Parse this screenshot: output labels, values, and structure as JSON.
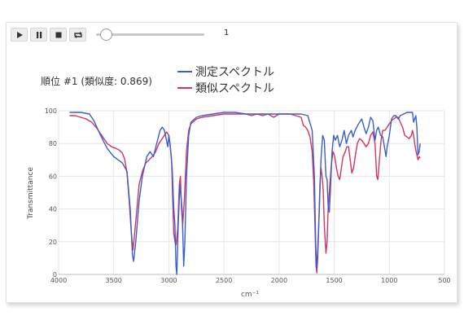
{
  "controls": {
    "play_label": "play",
    "pause_label": "pause",
    "stop_label": "stop",
    "loop_label": "loop",
    "frame_value": "1"
  },
  "rank_text": "順位 #1 (類似度: 0.869)",
  "colors": {
    "measured": "#3a5fcd",
    "similar": "#d6335f",
    "grid": "#e6e6e6",
    "axis_text": "#555555"
  },
  "chart_data": {
    "type": "line",
    "xlabel": "cm⁻¹",
    "ylabel": "Transmittance",
    "xlim": [
      4000,
      500
    ],
    "ylim": [
      0,
      100
    ],
    "x_ticks": [
      4000,
      3500,
      3000,
      2500,
      2000,
      1500,
      1000,
      500
    ],
    "y_ticks": [
      0,
      20,
      40,
      60,
      80,
      100
    ],
    "grid": true,
    "legend_position": "top-center",
    "series": [
      {
        "name": "測定スペクトル",
        "color": "#3a5fcd",
        "points": [
          [
            3900,
            99
          ],
          [
            3800,
            99
          ],
          [
            3720,
            98
          ],
          [
            3680,
            94
          ],
          [
            3620,
            85
          ],
          [
            3560,
            77
          ],
          [
            3500,
            72
          ],
          [
            3460,
            70
          ],
          [
            3420,
            68
          ],
          [
            3380,
            63
          ],
          [
            3350,
            40
          ],
          [
            3330,
            12
          ],
          [
            3320,
            8
          ],
          [
            3300,
            20
          ],
          [
            3270,
            45
          ],
          [
            3240,
            60
          ],
          [
            3200,
            72
          ],
          [
            3170,
            75
          ],
          [
            3140,
            72
          ],
          [
            3110,
            80
          ],
          [
            3080,
            88
          ],
          [
            3060,
            90
          ],
          [
            3040,
            88
          ],
          [
            3010,
            78
          ],
          [
            3000,
            85
          ],
          [
            2990,
            80
          ],
          [
            2970,
            65
          ],
          [
            2955,
            40
          ],
          [
            2945,
            30
          ],
          [
            2935,
            5
          ],
          [
            2928,
            0
          ],
          [
            2915,
            30
          ],
          [
            2900,
            55
          ],
          [
            2880,
            40
          ],
          [
            2865,
            5
          ],
          [
            2855,
            20
          ],
          [
            2840,
            60
          ],
          [
            2820,
            85
          ],
          [
            2800,
            93
          ],
          [
            2750,
            96
          ],
          [
            2700,
            97
          ],
          [
            2600,
            98
          ],
          [
            2500,
            99
          ],
          [
            2400,
            99
          ],
          [
            2300,
            98
          ],
          [
            2200,
            98
          ],
          [
            2100,
            98
          ],
          [
            2000,
            98
          ],
          [
            1900,
            98
          ],
          [
            1800,
            98
          ],
          [
            1740,
            97
          ],
          [
            1700,
            88
          ],
          [
            1680,
            60
          ],
          [
            1668,
            20
          ],
          [
            1660,
            3
          ],
          [
            1650,
            15
          ],
          [
            1635,
            40
          ],
          [
            1620,
            70
          ],
          [
            1605,
            85
          ],
          [
            1590,
            82
          ],
          [
            1575,
            60
          ],
          [
            1565,
            58
          ],
          [
            1555,
            42
          ],
          [
            1545,
            38
          ],
          [
            1535,
            50
          ],
          [
            1520,
            75
          ],
          [
            1505,
            85
          ],
          [
            1490,
            82
          ],
          [
            1470,
            85
          ],
          [
            1450,
            78
          ],
          [
            1430,
            82
          ],
          [
            1410,
            88
          ],
          [
            1390,
            80
          ],
          [
            1370,
            85
          ],
          [
            1345,
            88
          ],
          [
            1330,
            84
          ],
          [
            1310,
            88
          ],
          [
            1280,
            92
          ],
          [
            1250,
            95
          ],
          [
            1230,
            90
          ],
          [
            1210,
            86
          ],
          [
            1190,
            90
          ],
          [
            1170,
            96
          ],
          [
            1150,
            94
          ],
          [
            1130,
            82
          ],
          [
            1115,
            88
          ],
          [
            1100,
            90
          ],
          [
            1080,
            85
          ],
          [
            1060,
            84
          ],
          [
            1040,
            76
          ],
          [
            1030,
            72
          ],
          [
            1020,
            78
          ],
          [
            1000,
            85
          ],
          [
            980,
            95
          ],
          [
            960,
            97
          ],
          [
            940,
            97
          ],
          [
            920,
            95
          ],
          [
            900,
            97
          ],
          [
            870,
            98
          ],
          [
            840,
            99
          ],
          [
            810,
            99
          ],
          [
            790,
            99
          ],
          [
            780,
            93
          ],
          [
            770,
            95
          ],
          [
            760,
            97
          ],
          [
            750,
            90
          ],
          [
            740,
            73
          ],
          [
            730,
            75
          ],
          [
            720,
            80
          ]
        ]
      },
      {
        "name": "類似スペクトル",
        "color": "#d6335f",
        "points": [
          [
            3900,
            97
          ],
          [
            3850,
            97
          ],
          [
            3800,
            96
          ],
          [
            3750,
            95
          ],
          [
            3700,
            93
          ],
          [
            3650,
            89
          ],
          [
            3600,
            84
          ],
          [
            3560,
            80
          ],
          [
            3520,
            78
          ],
          [
            3480,
            77
          ],
          [
            3450,
            76
          ],
          [
            3420,
            74
          ],
          [
            3400,
            70
          ],
          [
            3380,
            62
          ],
          [
            3360,
            45
          ],
          [
            3340,
            25
          ],
          [
            3325,
            15
          ],
          [
            3310,
            25
          ],
          [
            3290,
            40
          ],
          [
            3270,
            55
          ],
          [
            3240,
            63
          ],
          [
            3210,
            68
          ],
          [
            3180,
            70
          ],
          [
            3150,
            72
          ],
          [
            3120,
            75
          ],
          [
            3090,
            80
          ],
          [
            3060,
            83
          ],
          [
            3040,
            85
          ],
          [
            3020,
            87
          ],
          [
            3000,
            85
          ],
          [
            2990,
            80
          ],
          [
            2975,
            70
          ],
          [
            2965,
            45
          ],
          [
            2955,
            25
          ],
          [
            2945,
            20
          ],
          [
            2935,
            18
          ],
          [
            2920,
            28
          ],
          [
            2905,
            55
          ],
          [
            2895,
            60
          ],
          [
            2885,
            40
          ],
          [
            2875,
            30
          ],
          [
            2860,
            45
          ],
          [
            2840,
            75
          ],
          [
            2820,
            88
          ],
          [
            2800,
            92
          ],
          [
            2750,
            95
          ],
          [
            2700,
            96
          ],
          [
            2600,
            97
          ],
          [
            2500,
            98
          ],
          [
            2400,
            98
          ],
          [
            2300,
            98
          ],
          [
            2250,
            97
          ],
          [
            2200,
            98
          ],
          [
            2150,
            97
          ],
          [
            2100,
            98
          ],
          [
            2050,
            96
          ],
          [
            2000,
            98
          ],
          [
            1950,
            98
          ],
          [
            1900,
            98
          ],
          [
            1850,
            97
          ],
          [
            1800,
            96
          ],
          [
            1780,
            91
          ],
          [
            1760,
            90
          ],
          [
            1740,
            88
          ],
          [
            1720,
            84
          ],
          [
            1700,
            75
          ],
          [
            1685,
            55
          ],
          [
            1675,
            30
          ],
          [
            1665,
            5
          ],
          [
            1658,
            1
          ],
          [
            1650,
            10
          ],
          [
            1640,
            30
          ],
          [
            1630,
            55
          ],
          [
            1620,
            65
          ],
          [
            1610,
            60
          ],
          [
            1600,
            52
          ],
          [
            1590,
            30
          ],
          [
            1575,
            13
          ],
          [
            1565,
            20
          ],
          [
            1555,
            40
          ],
          [
            1540,
            55
          ],
          [
            1525,
            68
          ],
          [
            1510,
            75
          ],
          [
            1495,
            72
          ],
          [
            1480,
            65
          ],
          [
            1465,
            60
          ],
          [
            1450,
            58
          ],
          [
            1435,
            65
          ],
          [
            1420,
            72
          ],
          [
            1400,
            75
          ],
          [
            1385,
            78
          ],
          [
            1370,
            78
          ],
          [
            1355,
            70
          ],
          [
            1340,
            62
          ],
          [
            1325,
            65
          ],
          [
            1310,
            72
          ],
          [
            1290,
            80
          ],
          [
            1270,
            83
          ],
          [
            1250,
            82
          ],
          [
            1230,
            80
          ],
          [
            1210,
            78
          ],
          [
            1190,
            80
          ],
          [
            1170,
            85
          ],
          [
            1150,
            87
          ],
          [
            1130,
            80
          ],
          [
            1115,
            60
          ],
          [
            1105,
            58
          ],
          [
            1090,
            70
          ],
          [
            1075,
            82
          ],
          [
            1060,
            88
          ],
          [
            1040,
            88
          ],
          [
            1020,
            90
          ],
          [
            1000,
            92
          ],
          [
            980,
            94
          ],
          [
            960,
            95
          ],
          [
            940,
            96
          ],
          [
            920,
            96
          ],
          [
            900,
            93
          ],
          [
            880,
            90
          ],
          [
            860,
            85
          ],
          [
            840,
            84
          ],
          [
            820,
            83
          ],
          [
            800,
            85
          ],
          [
            790,
            88
          ],
          [
            780,
            85
          ],
          [
            770,
            80
          ],
          [
            760,
            76
          ],
          [
            750,
            73
          ],
          [
            740,
            70
          ],
          [
            730,
            72
          ],
          [
            720,
            71
          ]
        ]
      }
    ]
  }
}
